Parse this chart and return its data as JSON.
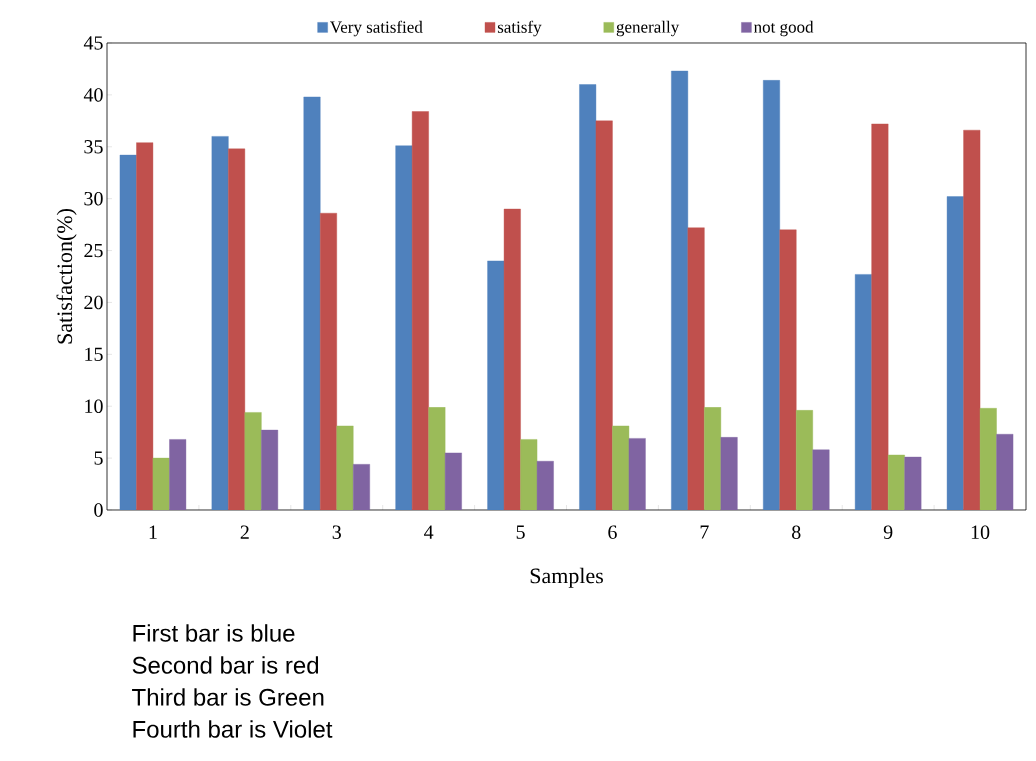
{
  "chart_data": {
    "type": "bar",
    "xlabel": "Samples",
    "ylabel": "Satisfaction(%)",
    "categories": [
      "1",
      "2",
      "3",
      "4",
      "5",
      "6",
      "7",
      "8",
      "9",
      "10"
    ],
    "series": [
      {
        "name": "Very satisfied",
        "color": "#4f81bd",
        "values": [
          34.2,
          36.0,
          39.8,
          35.1,
          24.0,
          41.0,
          42.3,
          41.4,
          22.7,
          30.2
        ]
      },
      {
        "name": "satisfy",
        "color": "#c0504d",
        "values": [
          35.4,
          34.8,
          28.6,
          38.4,
          29.0,
          37.5,
          27.2,
          27.0,
          37.2,
          36.6
        ]
      },
      {
        "name": "generally",
        "color": "#9bbb59",
        "values": [
          5.0,
          9.4,
          8.1,
          9.9,
          6.8,
          8.1,
          9.9,
          9.6,
          5.3,
          9.8
        ]
      },
      {
        "name": "not good",
        "color": "#8064a2",
        "values": [
          6.8,
          7.7,
          4.4,
          5.5,
          4.7,
          6.9,
          7.0,
          5.8,
          5.1,
          7.3
        ]
      }
    ],
    "ylim": [
      0,
      45
    ],
    "yticks": [
      0,
      5,
      10,
      15,
      20,
      25,
      30,
      35,
      40,
      45
    ],
    "legend": "top",
    "grid": false,
    "annotations": [
      "First bar is blue",
      "Second bar is red",
      "Third bar is Green",
      "Fourth bar is Violet"
    ]
  }
}
